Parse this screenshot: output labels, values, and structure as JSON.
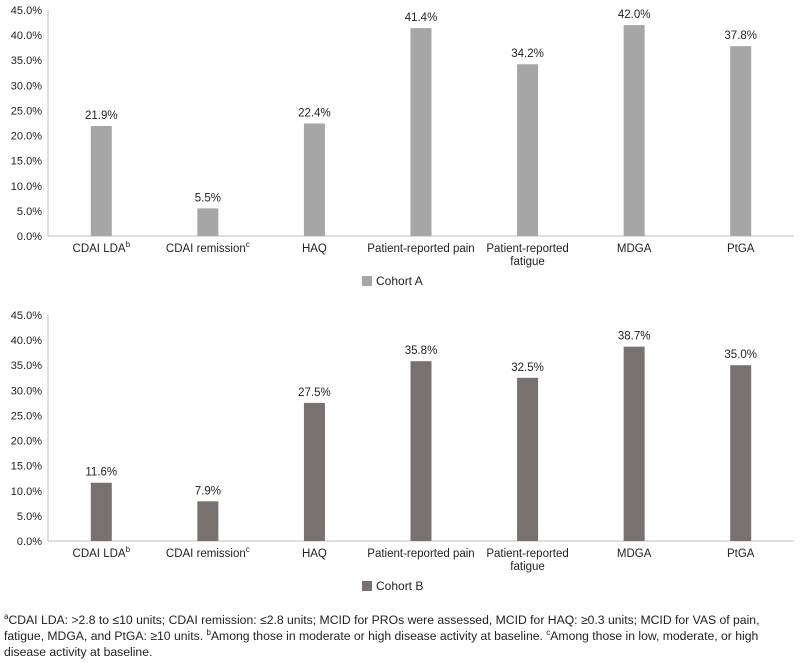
{
  "chart_data": [
    {
      "type": "bar",
      "categories": [
        {
          "label": "CDAI LDA",
          "sup": "b"
        },
        {
          "label": "CDAI remission",
          "sup": "c"
        },
        {
          "label": "HAQ",
          "sup": ""
        },
        {
          "label": "Patient-reported pain",
          "sup": ""
        },
        {
          "label": "Patient-reported\nfatigue",
          "sup": ""
        },
        {
          "label": "MDGA",
          "sup": ""
        },
        {
          "label": "PtGA",
          "sup": ""
        }
      ],
      "series": [
        {
          "name": "Cohort A",
          "color": "#a6a6a6",
          "values": [
            21.9,
            5.5,
            22.4,
            41.4,
            34.2,
            42.0,
            37.8
          ],
          "data_labels": [
            "21.9%",
            "5.5%",
            "22.4%",
            "41.4%",
            "34.2%",
            "42.0%",
            "37.8%"
          ]
        }
      ],
      "ylim": [
        0,
        45
      ],
      "yticks": [
        "0.0%",
        "5.0%",
        "10.0%",
        "15.0%",
        "20.0%",
        "25.0%",
        "30.0%",
        "35.0%",
        "40.0%",
        "45.0%"
      ],
      "grid": false,
      "legend": "bottom-left"
    },
    {
      "type": "bar",
      "categories": [
        {
          "label": "CDAI LDA",
          "sup": "b"
        },
        {
          "label": "CDAI remission",
          "sup": "c"
        },
        {
          "label": "HAQ",
          "sup": ""
        },
        {
          "label": "Patient-reported pain",
          "sup": ""
        },
        {
          "label": "Patient-reported\nfatigue",
          "sup": ""
        },
        {
          "label": "MDGA",
          "sup": ""
        },
        {
          "label": "PtGA",
          "sup": ""
        }
      ],
      "series": [
        {
          "name": "Cohort B",
          "color": "#77716f",
          "values": [
            11.6,
            7.9,
            27.5,
            35.8,
            32.5,
            38.7,
            35.0
          ],
          "data_labels": [
            "11.6%",
            "7.9%",
            "27.5%",
            "35.8%",
            "32.5%",
            "38.7%",
            "35.0%"
          ]
        }
      ],
      "ylim": [
        0,
        45
      ],
      "yticks": [
        "0.0%",
        "5.0%",
        "10.0%",
        "15.0%",
        "20.0%",
        "25.0%",
        "30.0%",
        "35.0%",
        "40.0%",
        "45.0%"
      ],
      "grid": false,
      "legend": "bottom-left"
    }
  ],
  "footnote": {
    "a_sup": "a",
    "a_text": "CDAI LDA: >2.8 to ≤10 units; CDAI remission: ≤2.8 units; MCID for PROs were assessed, MCID for HAQ: ≥0.3 units; MCID for VAS of pain, fatigue, MDGA, and PtGA: ≥10 units. ",
    "b_sup": "b",
    "b_text": "Among those in moderate or high disease activity at baseline. ",
    "c_sup": "c",
    "c_text": "Among those in low, moderate, or high disease activity at baseline."
  }
}
